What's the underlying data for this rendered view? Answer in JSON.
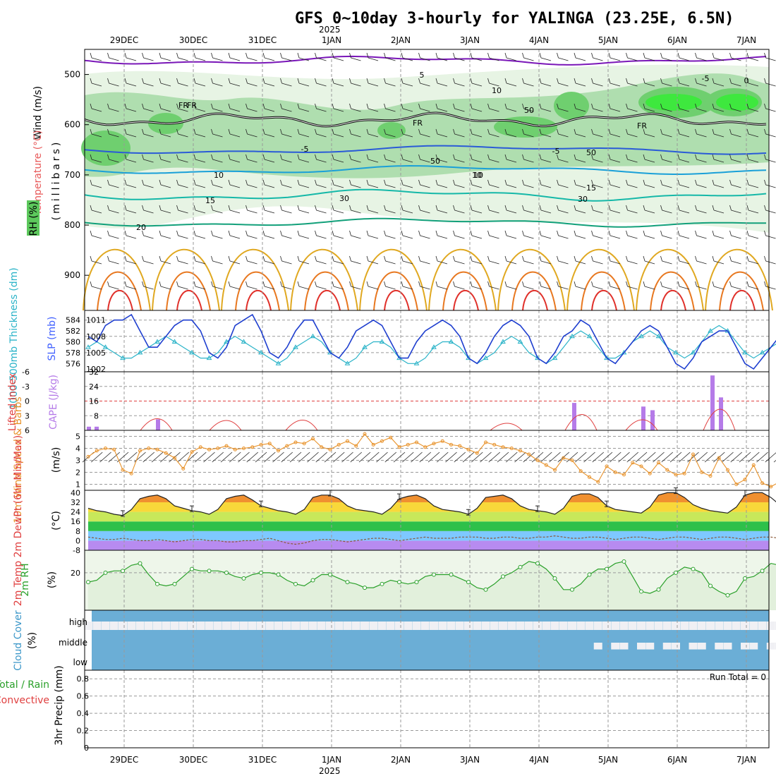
{
  "title": "GFS 0~10day 3-hourly for YALINGA (23.25E, 6.5N)",
  "year_label": "2025",
  "date_labels": [
    "29DEC",
    "30DEC",
    "31DEC",
    "1JAN",
    "2JAN",
    "3JAN",
    "4JAN",
    "5JAN",
    "6JAN",
    "7JAN"
  ],
  "colors": {
    "rh_dark": "#6fcf6f",
    "rh_mid": "#a8dca8",
    "rh_light": "#e7f4e4",
    "cloud_blue": "#6baed6",
    "cloud_white": "#f0f0f4",
    "temp_purple": "#7a17b8",
    "iso_blue": "#2a5bd7",
    "iso_cyan": "#1aa0d8",
    "iso_teal": "#15b8a8",
    "iso_green": "#12a07a",
    "iso_gold": "#e0a820",
    "iso_orange": "#e87820",
    "iso_red": "#e0302a",
    "slp_blue": "#1f3fcf",
    "thick_cyan": "#2ab3c8",
    "cape_purple": "#b57be8",
    "lifted_red": "#e04040",
    "wind_orange": "#e8922a",
    "rh2m_green": "#2aa02a"
  },
  "panels": {
    "upper": {
      "ylabel_wind": "Wind (m/s)",
      "ylabel_temp": "Temperature (°C)",
      "ylabel_rh": "RH (%)",
      "ylabel_mb": "(millibars)",
      "pressure_ticks": [
        "500",
        "600",
        "700",
        "800",
        "900"
      ],
      "contour_labels": [
        "5",
        "FR",
        "-5",
        "10",
        "15",
        "20",
        "10",
        "30",
        "50",
        "FR",
        "-5",
        "10",
        "15",
        "50",
        "30",
        "-5",
        "10",
        "50",
        "FR",
        "0",
        "FR"
      ]
    },
    "slp": {
      "ylabel_thick": "1000-500mb Thickness (dm)",
      "ylabel_slp": "SLP (mb)",
      "left_ticks": [
        "584",
        "582",
        "580",
        "578",
        "576"
      ],
      "right_ticks": [
        "1011",
        "1008",
        "1005",
        "1002"
      ]
    },
    "cape": {
      "ylabel_li": "Lifted Index",
      "ylabel_cape": "CAPE (J/kg)",
      "left_ticks": [
        "-6",
        "-3",
        "0",
        "3",
        "6"
      ],
      "right_ticks": [
        "32",
        "24",
        "16",
        "8"
      ]
    },
    "wind10": {
      "ylabel": "10m Wind Speed & Barbs",
      "unit": "(m/s)",
      "ticks": [
        "5",
        "4",
        "3",
        "2",
        "1"
      ]
    },
    "temp2m": {
      "ylabel": "2m Temp 2m DewPt (6hr Min/Max)",
      "unit": "(°C)",
      "ticks": [
        "40",
        "32",
        "24",
        "16",
        "8",
        "0",
        "-8"
      ]
    },
    "rh2m": {
      "ylabel": "2m RH",
      "unit": "(%)",
      "ticks": [
        "20"
      ]
    },
    "cloud": {
      "ylabel": "Cloud Cover",
      "unit": "(%)",
      "levels": [
        "high",
        "middle",
        "low"
      ]
    },
    "precip": {
      "ylabel_total": "Total / Rain",
      "ylabel_conv": "Convective",
      "ylabel_main": "3hr Precip (mm)",
      "ticks": [
        "0.8",
        "0.6",
        "0.4",
        "0.2",
        "0"
      ],
      "run_total": "Run Total = 0"
    }
  },
  "chart_data": [
    {
      "type": "line",
      "title": "SLP (mb)",
      "xlabel": "",
      "ylabel": "SLP (mb)",
      "ylim": [
        1002,
        1012
      ],
      "x_step_hours": 3,
      "series": [
        {
          "name": "SLP",
          "values": [
            1008,
            1007,
            1010,
            1011,
            1011,
            1012,
            1009,
            1006,
            1006,
            1008,
            1010,
            1011,
            1011,
            1009,
            1005,
            1004,
            1006,
            1010,
            1011,
            1012,
            1009,
            1005,
            1004,
            1006,
            1009,
            1011,
            1011,
            1008,
            1005,
            1004,
            1006,
            1009,
            1010,
            1011,
            1010,
            1007,
            1004,
            1004,
            1007,
            1009,
            1010,
            1011,
            1010,
            1008,
            1004,
            1003,
            1005,
            1008,
            1010,
            1011,
            1010,
            1008,
            1004,
            1003,
            1005,
            1008,
            1009,
            1011,
            1010,
            1007,
            1004,
            1003,
            1005,
            1007,
            1009,
            1010,
            1009,
            1006,
            1003,
            1002,
            1004,
            1007,
            1008,
            1009,
            1009,
            1006,
            1003,
            1002,
            1004,
            1006,
            1008,
            1010
          ]
        }
      ]
    },
    {
      "type": "line",
      "title": "1000-500mb Thickness (dm)",
      "xlabel": "",
      "ylabel": "Thickness (dm)",
      "ylim": [
        575,
        585
      ],
      "series": [
        {
          "name": "Thickness",
          "values": [
            579,
            580,
            579,
            578,
            577,
            577,
            578,
            579,
            580,
            581,
            580,
            579,
            578,
            577,
            577,
            578,
            580,
            581,
            580,
            579,
            578,
            577,
            576,
            577,
            579,
            580,
            581,
            580,
            578,
            577,
            576,
            577,
            579,
            580,
            580,
            579,
            577,
            576,
            576,
            577,
            579,
            580,
            580,
            579,
            577,
            576,
            577,
            578,
            580,
            581,
            580,
            578,
            577,
            576,
            577,
            579,
            581,
            582,
            581,
            579,
            577,
            577,
            578,
            580,
            581,
            582,
            581,
            579,
            578,
            577,
            578,
            580,
            582,
            583,
            582,
            580,
            578,
            577,
            578,
            579,
            580,
            581
          ]
        }
      ]
    },
    {
      "type": "bar",
      "title": "CAPE (J/kg)",
      "xlabel": "",
      "ylabel": "CAPE (J/kg)",
      "ylim": [
        0,
        32
      ],
      "categories": [
        "28DEC 15Z",
        "28DEC 18Z",
        "29DEC 12Z",
        "4JAN 12Z",
        "5JAN 12Z",
        "5JAN 15Z",
        "6JAN 12Z",
        "6JAN 15Z"
      ],
      "values": [
        2,
        2,
        6,
        15,
        13,
        11,
        30,
        18
      ]
    },
    {
      "type": "line",
      "title": "10m Wind Speed (m/s)",
      "xlabel": "",
      "ylabel": "Speed (m/s)",
      "ylim": [
        0.5,
        5.5
      ],
      "series": [
        {
          "name": "Wind",
          "values": [
            3.3,
            3.8,
            4.0,
            3.9,
            2.2,
            1.9,
            3.8,
            4.0,
            3.9,
            3.6,
            3.2,
            2.3,
            3.7,
            4.1,
            3.9,
            4.0,
            4.2,
            3.9,
            4.0,
            4.1,
            4.3,
            4.4,
            3.8,
            4.2,
            4.5,
            4.4,
            4.8,
            4.1,
            3.9,
            4.3,
            4.6,
            4.2,
            5.2,
            4.3,
            4.6,
            4.9,
            4.1,
            4.3,
            4.5,
            4.1,
            4.4,
            4.6,
            4.3,
            4.2,
            3.9,
            3.6,
            4.5,
            4.3,
            4.1,
            4.0,
            3.8,
            3.5,
            3.0,
            2.6,
            2.2,
            3.2,
            3.0,
            2.1,
            1.6,
            1.2,
            2.5,
            2.0,
            1.8,
            2.8,
            2.5,
            1.9,
            2.8,
            2.2,
            1.8,
            1.9,
            3.5,
            2.0,
            1.7,
            3.2,
            2.2,
            1.0,
            1.4,
            2.6,
            1.1,
            0.8,
            1.2,
            2.1
          ]
        }
      ]
    },
    {
      "type": "area",
      "title": "2m Temp / DewPt (°C)",
      "xlabel": "",
      "ylabel": "Temperature (°C)",
      "ylim": [
        -8,
        42
      ],
      "series": [
        {
          "name": "2m Temp",
          "values": [
            27,
            25,
            24,
            22,
            21,
            26,
            35,
            37,
            38,
            35,
            29,
            27,
            25,
            24,
            22,
            26,
            35,
            37,
            38,
            34,
            29,
            27,
            25,
            24,
            22,
            26,
            36,
            38,
            38,
            35,
            29,
            26,
            25,
            24,
            22,
            27,
            35,
            37,
            38,
            35,
            29,
            26,
            25,
            24,
            22,
            27,
            36,
            37,
            38,
            35,
            29,
            26,
            25,
            24,
            22,
            27,
            37,
            39,
            39,
            36,
            29,
            26,
            25,
            24,
            23,
            28,
            38,
            40,
            40,
            36,
            30,
            27,
            25,
            24,
            23,
            28,
            38,
            40,
            40,
            36,
            30,
            27
          ]
        },
        {
          "name": "2m DewPt",
          "values": [
            3,
            2,
            1,
            1,
            2,
            1,
            0,
            0,
            1,
            0,
            -1,
            0,
            1,
            1,
            0,
            0,
            -1,
            -1,
            0,
            0,
            1,
            2,
            0,
            -2,
            -3,
            -2,
            0,
            1,
            1,
            0,
            -1,
            0,
            1,
            2,
            2,
            1,
            0,
            1,
            2,
            3,
            2,
            2,
            2,
            3,
            3,
            3,
            2,
            2,
            3,
            3,
            2,
            2,
            3,
            3,
            4,
            3,
            2,
            2,
            3,
            3,
            2,
            1,
            2,
            3,
            3,
            2,
            1,
            2,
            3,
            3,
            2,
            1,
            2,
            3,
            3,
            2,
            1,
            2,
            3,
            3,
            2,
            2
          ]
        }
      ]
    },
    {
      "type": "line",
      "title": "2m RH (%)",
      "xlabel": "",
      "ylabel": "RH (%)",
      "ylim": [
        0,
        32
      ],
      "series": [
        {
          "name": "RH",
          "values": [
            15,
            16,
            20,
            21,
            21,
            24,
            25,
            19,
            14,
            13,
            14,
            18,
            22,
            21,
            21,
            21,
            20,
            18,
            17,
            19,
            20,
            20,
            19,
            16,
            14,
            13,
            16,
            19,
            19,
            17,
            15,
            14,
            12,
            12,
            14,
            16,
            15,
            14,
            15,
            18,
            19,
            19,
            19,
            17,
            15,
            12,
            11,
            14,
            18,
            20,
            23,
            26,
            25,
            22,
            17,
            11,
            11,
            14,
            19,
            22,
            22,
            25,
            26,
            18,
            10,
            9,
            11,
            17,
            20,
            23,
            22,
            20,
            13,
            10,
            8,
            10,
            17,
            18,
            21,
            25,
            24,
            23
          ]
        }
      ]
    },
    {
      "type": "table",
      "title": "Cloud Cover (%)",
      "note": "high / middle / low layers; mostly full low-middle cover, partial high cover"
    },
    {
      "type": "bar",
      "title": "3hr Precip (mm)",
      "xlabel": "",
      "ylabel": "3hr Precip (mm)",
      "ylim": [
        0,
        0.9
      ],
      "categories": [],
      "values": []
    }
  ]
}
